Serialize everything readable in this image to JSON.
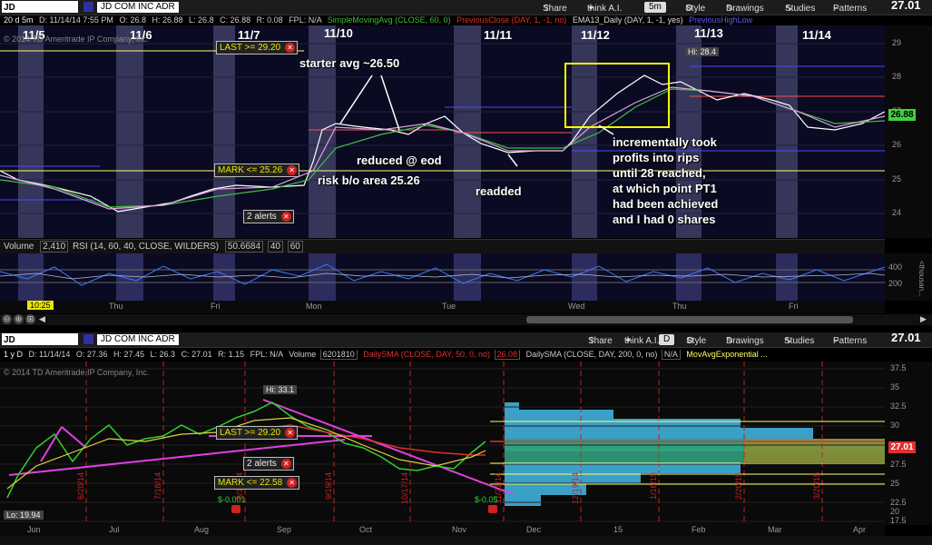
{
  "top": {
    "symbol": "JD",
    "period": "20 d 5m",
    "date": "D: 11/14/14 7:55 PM",
    "open": "O: 26.8",
    "high": "H: 26.88",
    "low": "L: 26.8",
    "close": "C: 26.88",
    "range": "R: 0.08",
    "fpl": "FPL: N/A",
    "ind_sma": "SimpleMovingAvg (CLOSE, 60, 0)",
    "ind_prev": "PreviousClose (DAY, 1, -1, no)",
    "ind_ema": "EMA13_Daily (DAY, 1, -1, yes)",
    "ind_prevhl": "PreviousHighLow",
    "name": "JD COM INC ADR",
    "share": "Share",
    "thinkai": "think A.I.",
    "aggregation": "5m",
    "style": "Style",
    "drawings": "Drawings",
    "studies": "Studies",
    "patterns": "Patterns",
    "last_price": "27.01",
    "copyright": "© 2014 TD Ameritrade IP Company, Inc.",
    "days": [
      "11/5",
      "11/6",
      "11/7",
      "11/10",
      "11/11",
      "11/12",
      "11/13",
      "11/14"
    ],
    "price_ticks": [
      "29",
      "28",
      "27",
      "26",
      "25",
      "24"
    ],
    "current_badge": "26.88",
    "hi_label": "Hi: 28.4",
    "alert_last": "LAST >= 29.20",
    "alert_mark": "MARK <= 25.26",
    "alert_count": "2 alerts",
    "annotations": {
      "starter": "starter avg ~26.50",
      "reduced": "reduced @ eod",
      "risk": "risk b/o area 25.26",
      "readded": "readded",
      "profits": "incrementally took\nprofits into rips\nuntil 28 reached,\nat which point PT1\nhad been achieved\nand I had 0 shares"
    },
    "rsi_header": {
      "volume": "Volume",
      "vol_val": "2,410",
      "rsi": "RSI (14, 60, 40, CLOSE, WILDERS)",
      "rsi_val": "50.6684",
      "ob": "40",
      "os": "60"
    },
    "rsi_ticks": [
      "400",
      "200"
    ],
    "rsi_unit": "<thousan...",
    "x_days": [
      "Thu",
      "Fri",
      "Mon",
      "Tue",
      "Wed",
      "Thu",
      "Fri"
    ],
    "time_badge": "10:25"
  },
  "bottom": {
    "symbol": "JD",
    "period": "1 y D",
    "date": "D: 11/14/14",
    "open": "O: 27.36",
    "high": "H: 27.45",
    "low": "L: 26.3",
    "close": "C: 27.01",
    "range": "R: 1.15",
    "fpl": "FPL: N/A",
    "volume": "Volume",
    "vol_val": "6201810",
    "ind_sma50": "DailySMA (CLOSE, DAY, 50, 0, no)",
    "sma50_val": "26.08",
    "ind_sma200": "DailySMA (CLOSE, DAY, 200, 0, no)",
    "sma200_val": "N/A",
    "ind_ema": "MovAvgExponential ...",
    "name": "JD COM INC ADR",
    "share": "Share",
    "thinkai": "think A.I.",
    "aggregation": "D",
    "style": "Style",
    "drawings": "Drawings",
    "studies": "Studies",
    "patterns": "Patterns",
    "last_price": "27.01",
    "copyright": "© 2014 TD Ameritrade IP Company, Inc.",
    "price_ticks": [
      "37.5",
      "35",
      "32.5",
      "30",
      "27.5",
      "25",
      "22.5",
      "20",
      "17.5"
    ],
    "current_badge": "27.01",
    "hi_label": "Hi: 33.1",
    "lo_label": "Lo: 19.94",
    "alert_last": "LAST >= 29.20",
    "alert_mark": "MARK <= 22.58",
    "alert_count": "2 alerts",
    "div1": "$-0.001",
    "div2": "$-0.05",
    "vdates": [
      "6/20/14",
      "7/18/14",
      "8/15/14",
      "9/19/14",
      "10/17/14",
      "11/21/14",
      "12/19/14",
      "1/16/15",
      "2/20/15",
      "3/20/15"
    ],
    "months": [
      "Jun",
      "Jul",
      "Aug",
      "Sep",
      "Oct",
      "Nov",
      "Dec",
      "15",
      "Feb",
      "Mar",
      "Apr"
    ]
  },
  "colors": {
    "up": "#2fd02f",
    "down": "#e03030",
    "sma60": "#3fbf3f",
    "ema13": "#e0a0e0",
    "price": "#ffffff",
    "accent_yellow": "#ffff00",
    "panel_bg": "#0a0a20"
  }
}
